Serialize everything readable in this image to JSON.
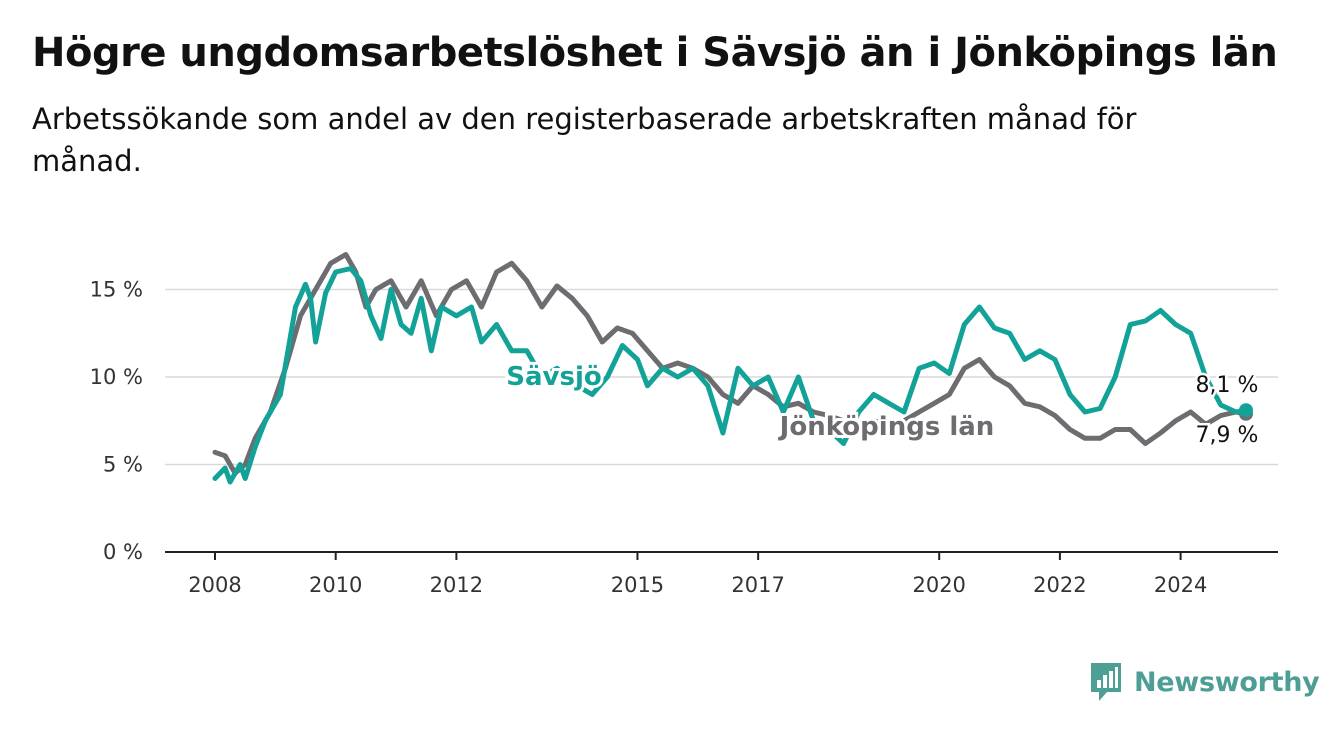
{
  "title": "Högre ungdomsarbetslöshet i Sävsjö än i Jönköpings län",
  "subtitle": "Arbetssökande som andel av den registerbaserade arbetskraften månad för månad.",
  "brand": {
    "name": "Newsworthy",
    "color": "#4d9e95",
    "icon": "newsworthy-logo-icon"
  },
  "chart_data": {
    "type": "line",
    "x_ticks": [
      "2008",
      "2010",
      "2012",
      "2015",
      "2017",
      "2020",
      "2022",
      "2024"
    ],
    "y_ticks": [
      "0 %",
      "5 %",
      "10 %",
      "15 %"
    ],
    "ylim": [
      0,
      18
    ],
    "grid": true,
    "series": [
      {
        "name": "Jönköpings län",
        "color": "#6d6c70",
        "end_label": "7,9 %",
        "points": [
          [
            "2008-01",
            5.7
          ],
          [
            "2008-03",
            5.5
          ],
          [
            "2008-05",
            4.5
          ],
          [
            "2008-07",
            5.0
          ],
          [
            "2008-09",
            6.5
          ],
          [
            "2008-12",
            8.0
          ],
          [
            "2009-03",
            10.5
          ],
          [
            "2009-06",
            13.5
          ],
          [
            "2009-09",
            15.0
          ],
          [
            "2009-12",
            16.5
          ],
          [
            "2010-03",
            17.0
          ],
          [
            "2010-05",
            16.0
          ],
          [
            "2010-07",
            14.0
          ],
          [
            "2010-09",
            15.0
          ],
          [
            "2010-12",
            15.5
          ],
          [
            "2011-03",
            14.0
          ],
          [
            "2011-06",
            15.5
          ],
          [
            "2011-09",
            13.5
          ],
          [
            "2011-12",
            15.0
          ],
          [
            "2012-03",
            15.5
          ],
          [
            "2012-06",
            14.0
          ],
          [
            "2012-09",
            16.0
          ],
          [
            "2012-12",
            16.5
          ],
          [
            "2013-03",
            15.5
          ],
          [
            "2013-06",
            14.0
          ],
          [
            "2013-09",
            15.2
          ],
          [
            "2013-12",
            14.5
          ],
          [
            "2014-03",
            13.5
          ],
          [
            "2014-06",
            12.0
          ],
          [
            "2014-09",
            12.8
          ],
          [
            "2014-12",
            12.5
          ],
          [
            "2015-03",
            11.5
          ],
          [
            "2015-06",
            10.5
          ],
          [
            "2015-09",
            10.8
          ],
          [
            "2015-12",
            10.5
          ],
          [
            "2016-03",
            10.0
          ],
          [
            "2016-06",
            9.0
          ],
          [
            "2016-09",
            8.5
          ],
          [
            "2016-12",
            9.5
          ],
          [
            "2017-03",
            9.0
          ],
          [
            "2017-06",
            8.3
          ],
          [
            "2017-09",
            8.5
          ],
          [
            "2017-12",
            8.0
          ],
          [
            "2018-03",
            7.8
          ],
          [
            "2018-06",
            7.5
          ],
          [
            "2018-09",
            7.0
          ],
          [
            "2018-12",
            7.5
          ],
          [
            "2019-03",
            7.3
          ],
          [
            "2019-06",
            7.5
          ],
          [
            "2019-09",
            8.0
          ],
          [
            "2019-12",
            8.5
          ],
          [
            "2020-03",
            9.0
          ],
          [
            "2020-06",
            10.5
          ],
          [
            "2020-09",
            11.0
          ],
          [
            "2020-12",
            10.0
          ],
          [
            "2021-03",
            9.5
          ],
          [
            "2021-06",
            8.5
          ],
          [
            "2021-09",
            8.3
          ],
          [
            "2021-12",
            7.8
          ],
          [
            "2022-03",
            7.0
          ],
          [
            "2022-06",
            6.5
          ],
          [
            "2022-09",
            6.5
          ],
          [
            "2022-12",
            7.0
          ],
          [
            "2023-03",
            7.0
          ],
          [
            "2023-06",
            6.2
          ],
          [
            "2023-09",
            6.8
          ],
          [
            "2023-12",
            7.5
          ],
          [
            "2024-03",
            8.0
          ],
          [
            "2024-06",
            7.3
          ],
          [
            "2024-09",
            7.8
          ],
          [
            "2024-12",
            8.0
          ],
          [
            "2025-02",
            7.9
          ]
        ]
      },
      {
        "name": "Sävsjö",
        "color": "#13a297",
        "end_label": "8,1 %",
        "points": [
          [
            "2008-01",
            4.2
          ],
          [
            "2008-03",
            4.8
          ],
          [
            "2008-04",
            4.0
          ],
          [
            "2008-06",
            5.0
          ],
          [
            "2008-07",
            4.2
          ],
          [
            "2008-09",
            6.0
          ],
          [
            "2008-11",
            7.5
          ],
          [
            "2009-02",
            9.0
          ],
          [
            "2009-05",
            14.0
          ],
          [
            "2009-07",
            15.3
          ],
          [
            "2009-08",
            14.5
          ],
          [
            "2009-09",
            12.0
          ],
          [
            "2009-11",
            14.8
          ],
          [
            "2010-01",
            16.0
          ],
          [
            "2010-04",
            16.2
          ],
          [
            "2010-06",
            15.5
          ],
          [
            "2010-08",
            13.5
          ],
          [
            "2010-10",
            12.2
          ],
          [
            "2010-12",
            15.0
          ],
          [
            "2011-02",
            13.0
          ],
          [
            "2011-04",
            12.5
          ],
          [
            "2011-06",
            14.5
          ],
          [
            "2011-08",
            11.5
          ],
          [
            "2011-10",
            14.0
          ],
          [
            "2012-01",
            13.5
          ],
          [
            "2012-04",
            14.0
          ],
          [
            "2012-06",
            12.0
          ],
          [
            "2012-09",
            13.0
          ],
          [
            "2012-12",
            11.5
          ],
          [
            "2013-03",
            11.5
          ],
          [
            "2013-06",
            10.0
          ],
          [
            "2013-09",
            10.5
          ],
          [
            "2014-01",
            9.5
          ],
          [
            "2014-04",
            9.0
          ],
          [
            "2014-07",
            10.0
          ],
          [
            "2014-10",
            11.8
          ],
          [
            "2015-01",
            11.0
          ],
          [
            "2015-03",
            9.5
          ],
          [
            "2015-06",
            10.5
          ],
          [
            "2015-09",
            10.0
          ],
          [
            "2015-12",
            10.5
          ],
          [
            "2016-03",
            9.5
          ],
          [
            "2016-06",
            6.8
          ],
          [
            "2016-09",
            10.5
          ],
          [
            "2016-12",
            9.5
          ],
          [
            "2017-03",
            10.0
          ],
          [
            "2017-06",
            8.0
          ],
          [
            "2017-09",
            10.0
          ],
          [
            "2017-12",
            7.5
          ],
          [
            "2018-03",
            7.0
          ],
          [
            "2018-06",
            6.2
          ],
          [
            "2018-09",
            8.0
          ],
          [
            "2018-12",
            9.0
          ],
          [
            "2019-03",
            8.5
          ],
          [
            "2019-06",
            8.0
          ],
          [
            "2019-09",
            10.5
          ],
          [
            "2019-12",
            10.8
          ],
          [
            "2020-03",
            10.2
          ],
          [
            "2020-06",
            13.0
          ],
          [
            "2020-09",
            14.0
          ],
          [
            "2020-12",
            12.8
          ],
          [
            "2021-03",
            12.5
          ],
          [
            "2021-06",
            11.0
          ],
          [
            "2021-09",
            11.5
          ],
          [
            "2021-12",
            11.0
          ],
          [
            "2022-03",
            9.0
          ],
          [
            "2022-06",
            8.0
          ],
          [
            "2022-09",
            8.2
          ],
          [
            "2022-12",
            10.0
          ],
          [
            "2023-03",
            13.0
          ],
          [
            "2023-06",
            13.2
          ],
          [
            "2023-09",
            13.8
          ],
          [
            "2023-12",
            13.0
          ],
          [
            "2024-03",
            12.5
          ],
          [
            "2024-06",
            10.0
          ],
          [
            "2024-09",
            8.4
          ],
          [
            "2024-12",
            8.0
          ],
          [
            "2025-02",
            8.1
          ]
        ]
      }
    ]
  }
}
